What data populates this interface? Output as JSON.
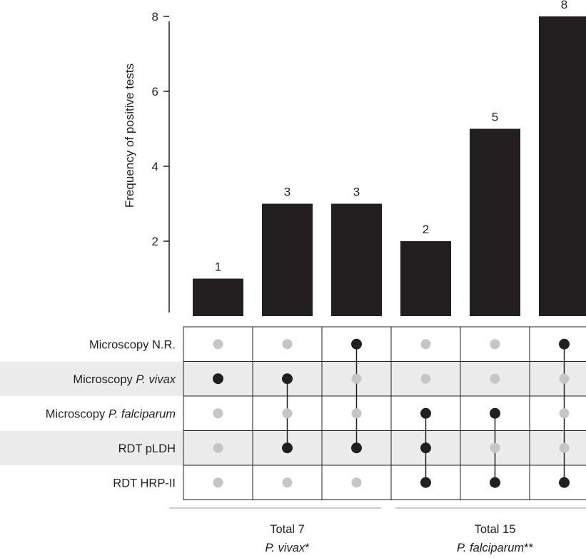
{
  "chart_data": {
    "type": "bar",
    "subtype": "upset",
    "ylabel": "Frequency of positive tests",
    "yticks": [
      2,
      4,
      6,
      8
    ],
    "ylim": [
      0,
      8
    ],
    "bar_color": "#231f20",
    "values": [
      1,
      3,
      3,
      2,
      5,
      8
    ],
    "sets": [
      {
        "label_parts": [
          "Microscopy N.R."
        ]
      },
      {
        "label_parts": [
          "Microscopy ",
          "P. vivax"
        ],
        "italic_index": 1
      },
      {
        "label_parts": [
          "Microscopy ",
          "P. falciparum"
        ],
        "italic_index": 1
      },
      {
        "label_parts": [
          "RDT pLDH"
        ]
      },
      {
        "label_parts": [
          "RDT HRP-II"
        ]
      }
    ],
    "memberships": [
      [
        1
      ],
      [
        1,
        3
      ],
      [
        0,
        3
      ],
      [
        2,
        3,
        4
      ],
      [
        2,
        4
      ],
      [
        0,
        4
      ]
    ],
    "active_dot_color": "#231f20",
    "inactive_dot_color": "#c6c6c6",
    "stripe_color": "#ececec",
    "groups": [
      {
        "line1": "Total 7",
        "species": "P. vivax",
        "mark": "*",
        "columns": [
          0,
          2
        ]
      },
      {
        "line1": "Total 15",
        "species": "P. falciparum",
        "mark": "**",
        "columns": [
          3,
          5
        ]
      }
    ]
  }
}
